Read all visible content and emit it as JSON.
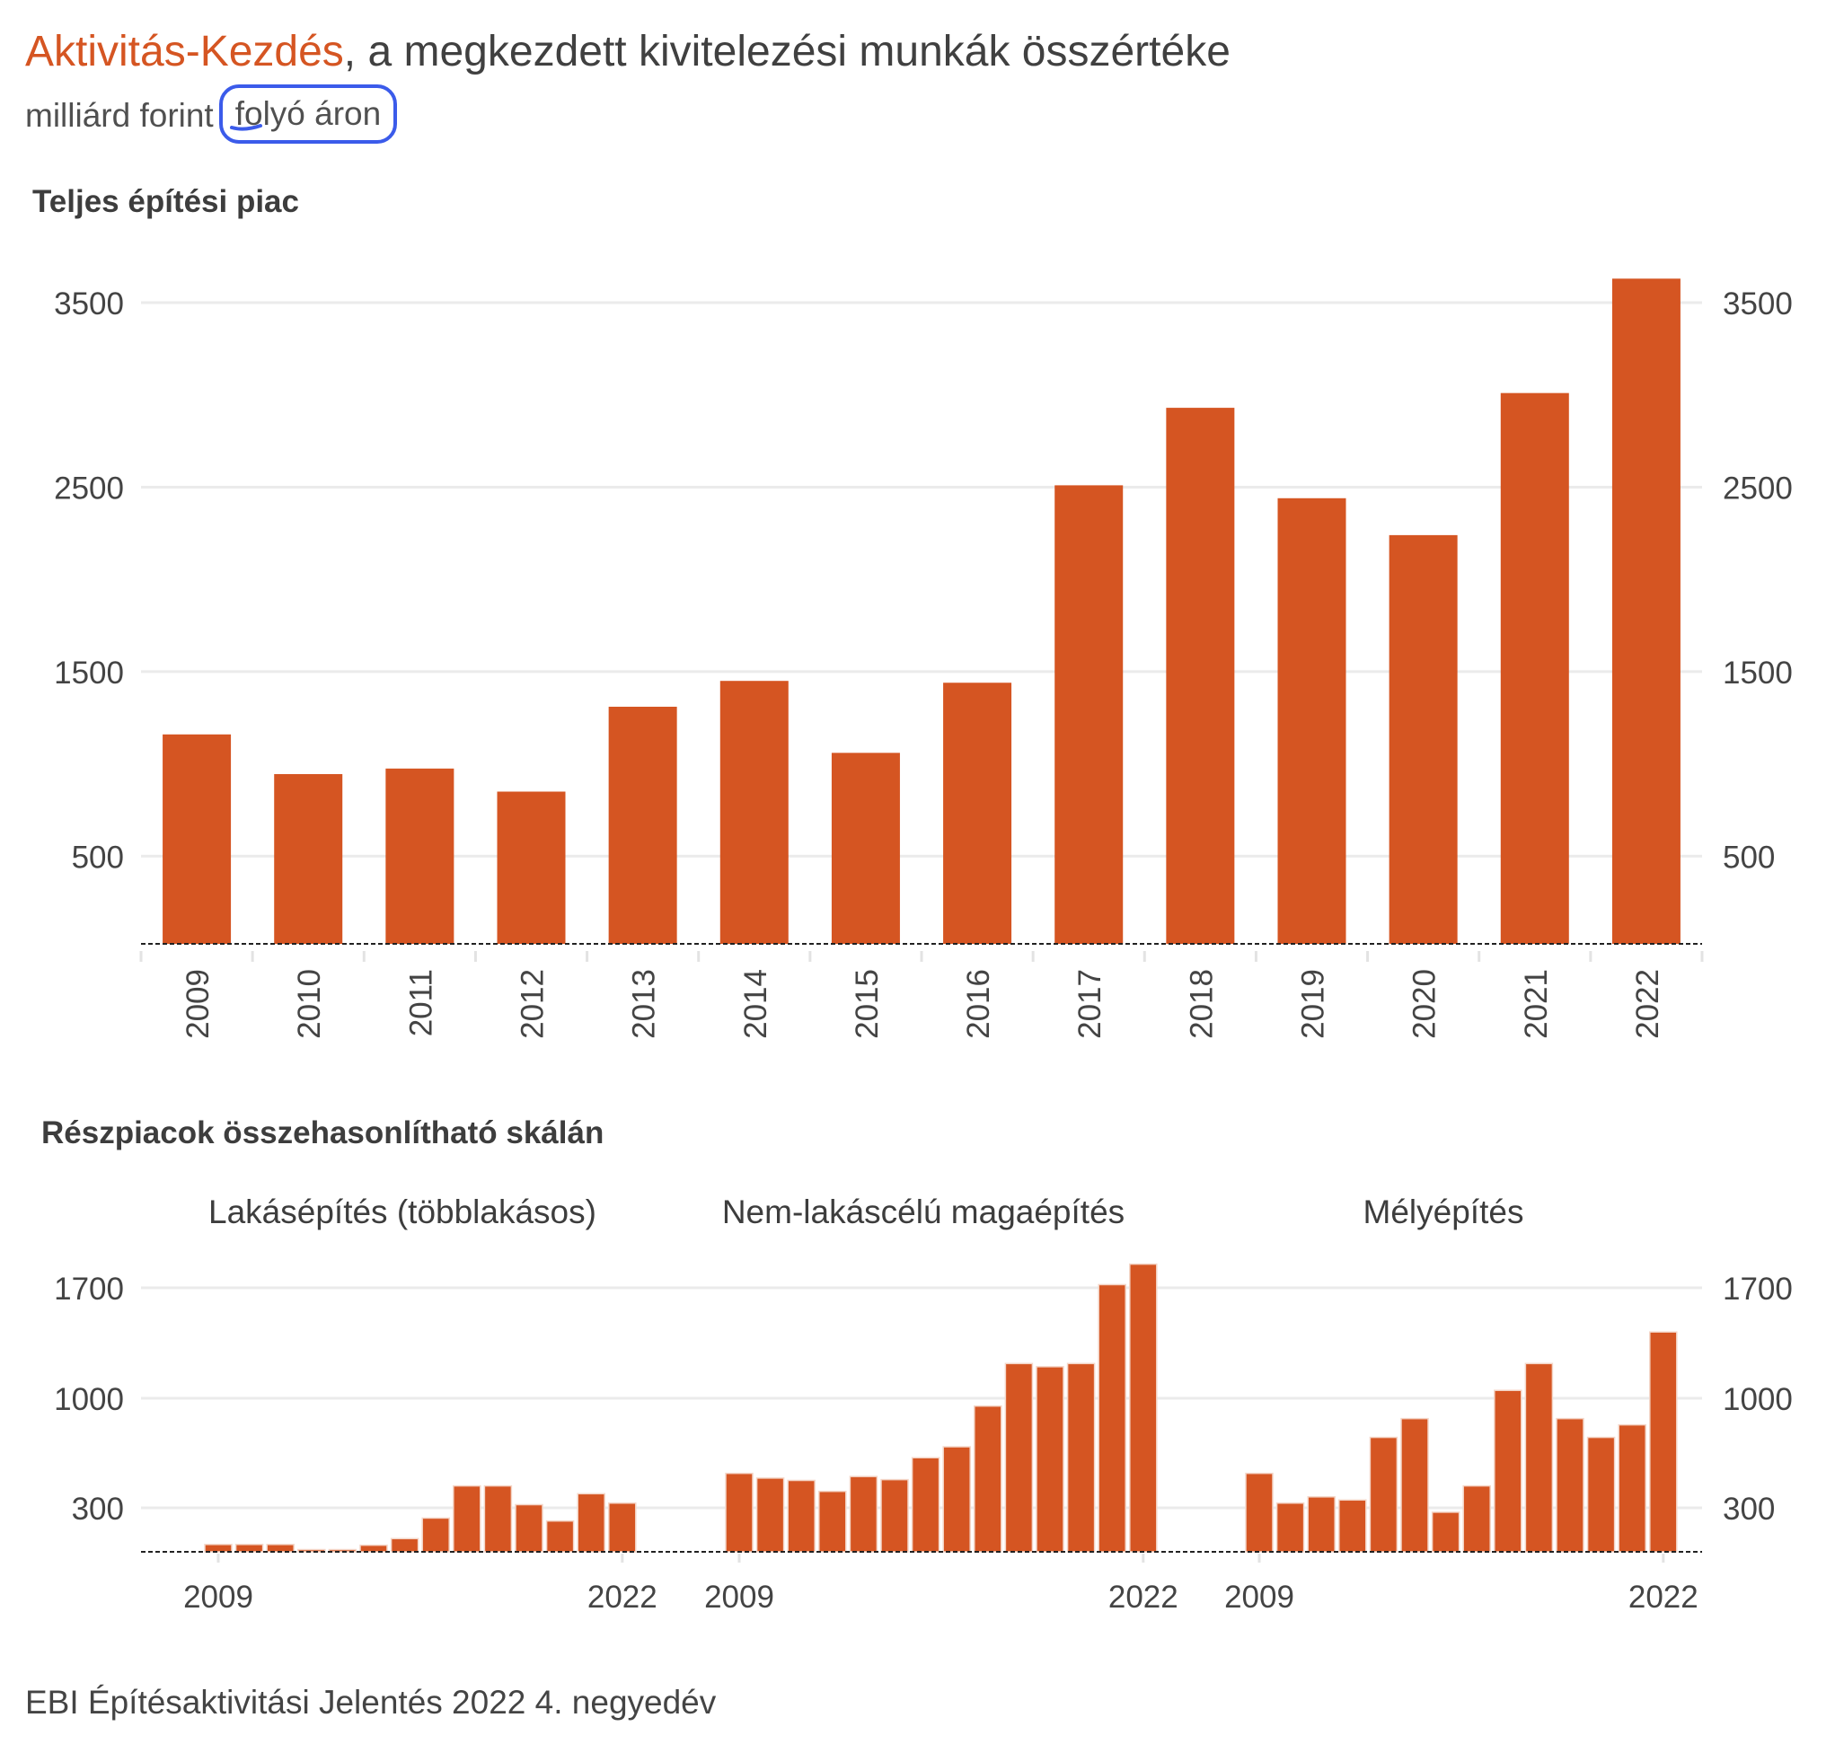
{
  "title": {
    "accent": "Aktivitás-Kezdés",
    "rest": ", a megkezdett kivitelezési munkák összértéke"
  },
  "subtitle": {
    "unit": "milliárd forint",
    "highlight": "folyó áron"
  },
  "colors": {
    "bar": "#d55522",
    "annotation": "#3b5bea",
    "grid": "#ebebeb"
  },
  "source": "EBI Építésaktivitási Jelentés 2022 4. negyedév",
  "chart_data": [
    {
      "type": "bar",
      "title": "Teljes építési piac",
      "categories": [
        "2009",
        "2010",
        "2011",
        "2012",
        "2013",
        "2014",
        "2015",
        "2016",
        "2017",
        "2018",
        "2019",
        "2020",
        "2021",
        "2022"
      ],
      "values": [
        1160,
        945,
        975,
        850,
        1310,
        1450,
        1060,
        1440,
        2510,
        2930,
        2440,
        2240,
        3010,
        3630
      ],
      "ylim": [
        25,
        3680
      ],
      "yticks": [
        "500",
        "1500",
        "2500",
        "3500"
      ],
      "xlabel": "",
      "ylabel": ""
    },
    {
      "type": "bar",
      "title": "Részpiacok összehasonlítható skálán",
      "ylim": [
        0,
        1850
      ],
      "yticks": [
        "300",
        "1000",
        "1700"
      ],
      "x_tick_labels": [
        "2009",
        "2022"
      ],
      "years": [
        "2009",
        "2010",
        "2011",
        "2012",
        "2013",
        "2014",
        "2015",
        "2016",
        "2017",
        "2018",
        "2019",
        "2020",
        "2021",
        "2022"
      ],
      "series": [
        {
          "name": "Lakásépítés (többlakásos)",
          "values": [
            50,
            50,
            50,
            15,
            15,
            45,
            90,
            230,
            440,
            440,
            320,
            210,
            390,
            330
          ]
        },
        {
          "name": "Nem-lakáscélú magaépítés",
          "values": [
            520,
            490,
            475,
            405,
            500,
            480,
            620,
            690,
            950,
            1220,
            1200,
            1220,
            1720,
            1850
          ]
        },
        {
          "name": "Mélyépítés",
          "values": [
            520,
            330,
            370,
            350,
            750,
            870,
            270,
            440,
            1050,
            1220,
            870,
            750,
            830,
            1420
          ]
        }
      ]
    }
  ]
}
